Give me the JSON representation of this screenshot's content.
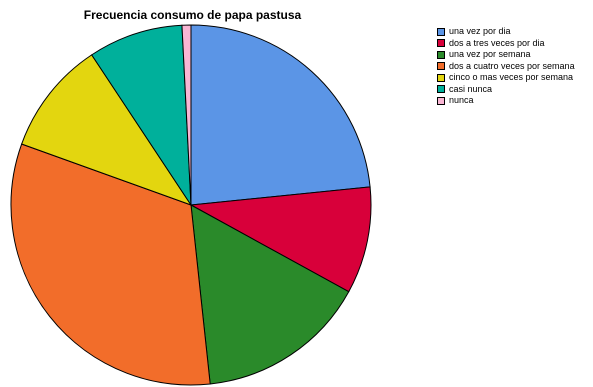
{
  "chart_data": {
    "type": "pie",
    "title": "Frecuencia consumo de papa pastusa",
    "legend_position": "top-right",
    "categories": [
      "una vez por dia",
      "dos a tres veces por dia",
      "una vez por semana",
      "dos a cuatro veces por semana",
      "cinco o mas veces por semana",
      "casi nunca",
      "nunca"
    ],
    "values": [
      23.4,
      9.6,
      15.3,
      32.2,
      10.2,
      8.5,
      0.8
    ],
    "colors": [
      "#5b95e6",
      "#d8003a",
      "#2a8a2a",
      "#f26d2a",
      "#e3d60f",
      "#00b09b",
      "#f9b6d4"
    ]
  }
}
